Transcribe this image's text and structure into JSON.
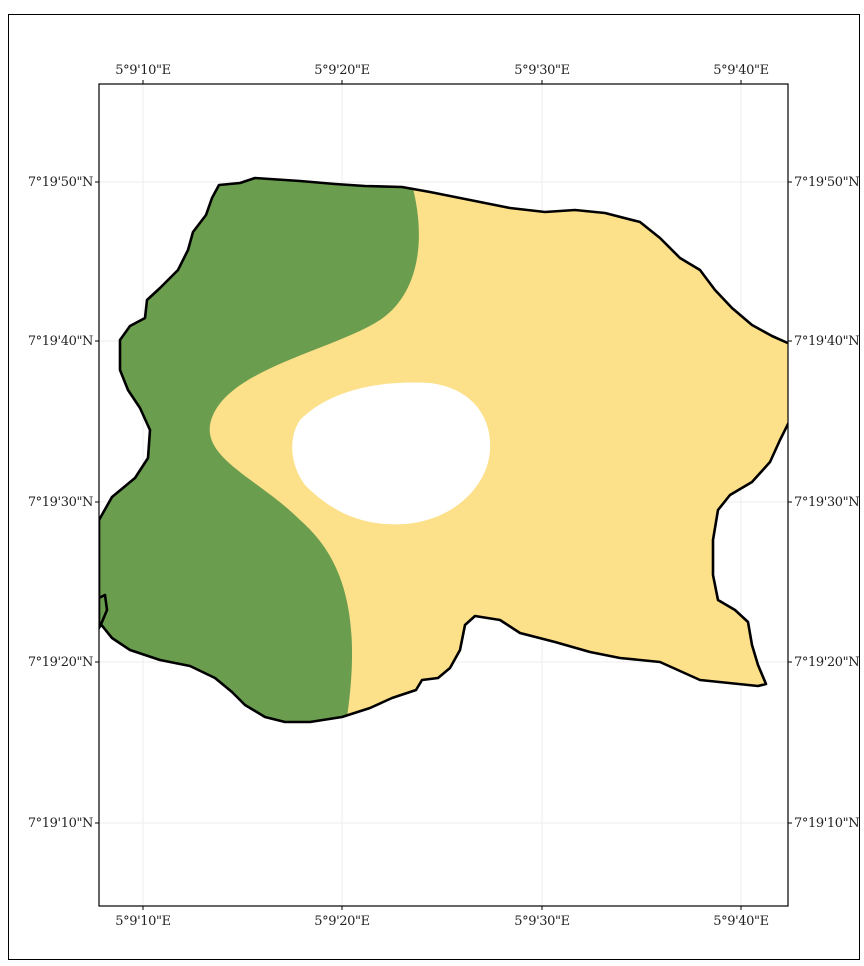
{
  "map": {
    "background": "#ffffff",
    "grid_color": "#eeeeee",
    "outline_color": "#000000",
    "zones": [
      {
        "name": "green-zone",
        "color": "#6b9d4e"
      },
      {
        "name": "yellow-zone",
        "color": "#fde08a"
      },
      {
        "name": "white-hole",
        "color": "#ffffff"
      }
    ],
    "longitude_ticks": [
      "5°9'10\"E",
      "5°9'20\"E",
      "5°9'30\"E",
      "5°9'40\"E"
    ],
    "latitude_ticks": [
      "7°19'50\"N",
      "7°19'40\"N",
      "7°19'30\"N",
      "7°19'20\"N",
      "7°19'10\"N"
    ]
  }
}
